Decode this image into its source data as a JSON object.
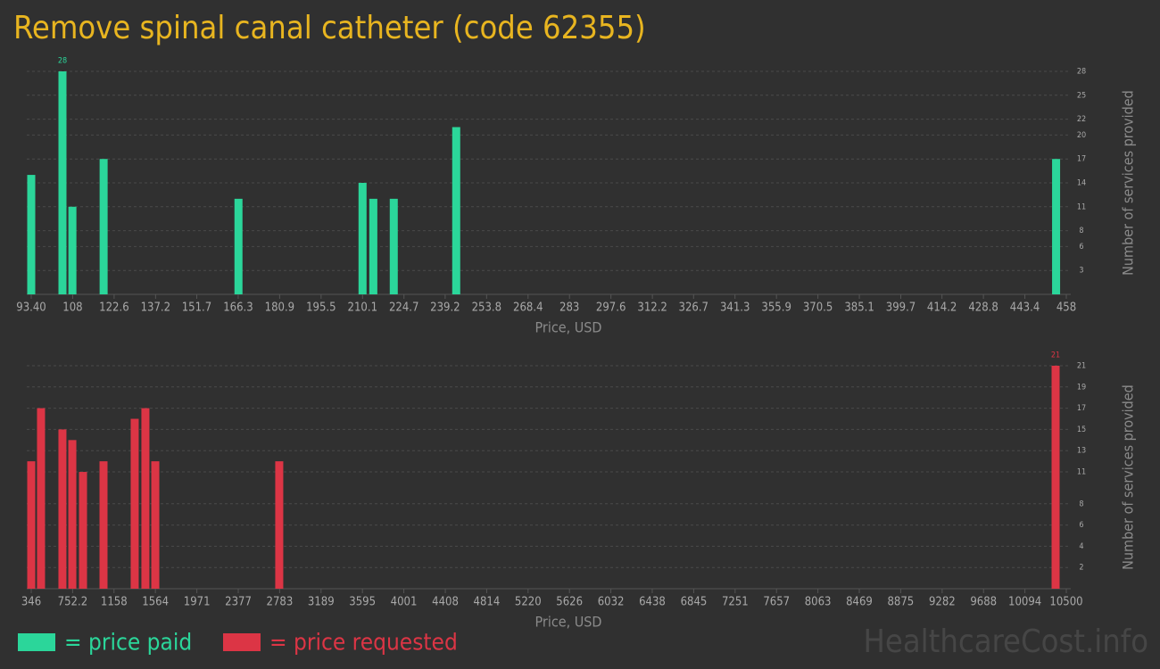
{
  "title": "Remove spinal canal catheter (code 62355)",
  "watermark": "HealthcareCost.info",
  "chart_data": [
    {
      "type": "bar",
      "xlabel": "Price, USD",
      "ylabel": "Number of services provided",
      "grid": true,
      "x": [
        93.4,
        104.4,
        107.9,
        118.9,
        166.4,
        210.1,
        213.9,
        221.1,
        243.1,
        454.4
      ],
      "series": [
        {
          "name": "= price paid",
          "color": "#2bd69a",
          "values": [
            15,
            28,
            11,
            17,
            12,
            14,
            12,
            12,
            21,
            17
          ]
        }
      ],
      "xlim": [
        93.4,
        458
      ],
      "ylim": [
        0,
        28
      ],
      "xticks": [
        {
          "value": 93.4,
          "label": "93.40"
        },
        108,
        122.6,
        137.2,
        151.7,
        166.3,
        180.9,
        195.5,
        210.1,
        224.7,
        239.2,
        253.8,
        268.4,
        283,
        297.6,
        312.2,
        326.7,
        341.3,
        355.9,
        370.5,
        385.1,
        399.7,
        414.2,
        428.8,
        443.4,
        458
      ],
      "yticks": [
        3,
        6,
        8,
        11,
        14,
        17,
        20,
        22,
        25,
        28
      ]
    },
    {
      "type": "bar",
      "xlabel": "Price, USD",
      "ylabel": "Number of services provided",
      "grid": true,
      "x": [
        346,
        442,
        652,
        749,
        854,
        1055,
        1361,
        1466,
        1563,
        2779,
        10395
      ],
      "series": [
        {
          "name": "= price requested",
          "color": "#dc3545",
          "values": [
            12,
            17,
            15,
            14,
            11,
            12,
            16,
            17,
            12,
            12,
            21
          ]
        }
      ],
      "xlim": [
        346,
        10500
      ],
      "ylim": [
        0,
        21
      ],
      "xticks": [
        346,
        752.2,
        1158,
        1564,
        1971,
        2377,
        2783,
        3189,
        3595,
        4001,
        4408,
        4814,
        5220,
        5626,
        6032,
        6438,
        6845,
        7251,
        7657,
        8063,
        8469,
        8875,
        9282,
        9688,
        10094,
        10500
      ],
      "yticks": [
        2,
        4,
        6,
        8,
        11,
        13,
        15,
        17,
        19,
        21
      ]
    }
  ]
}
